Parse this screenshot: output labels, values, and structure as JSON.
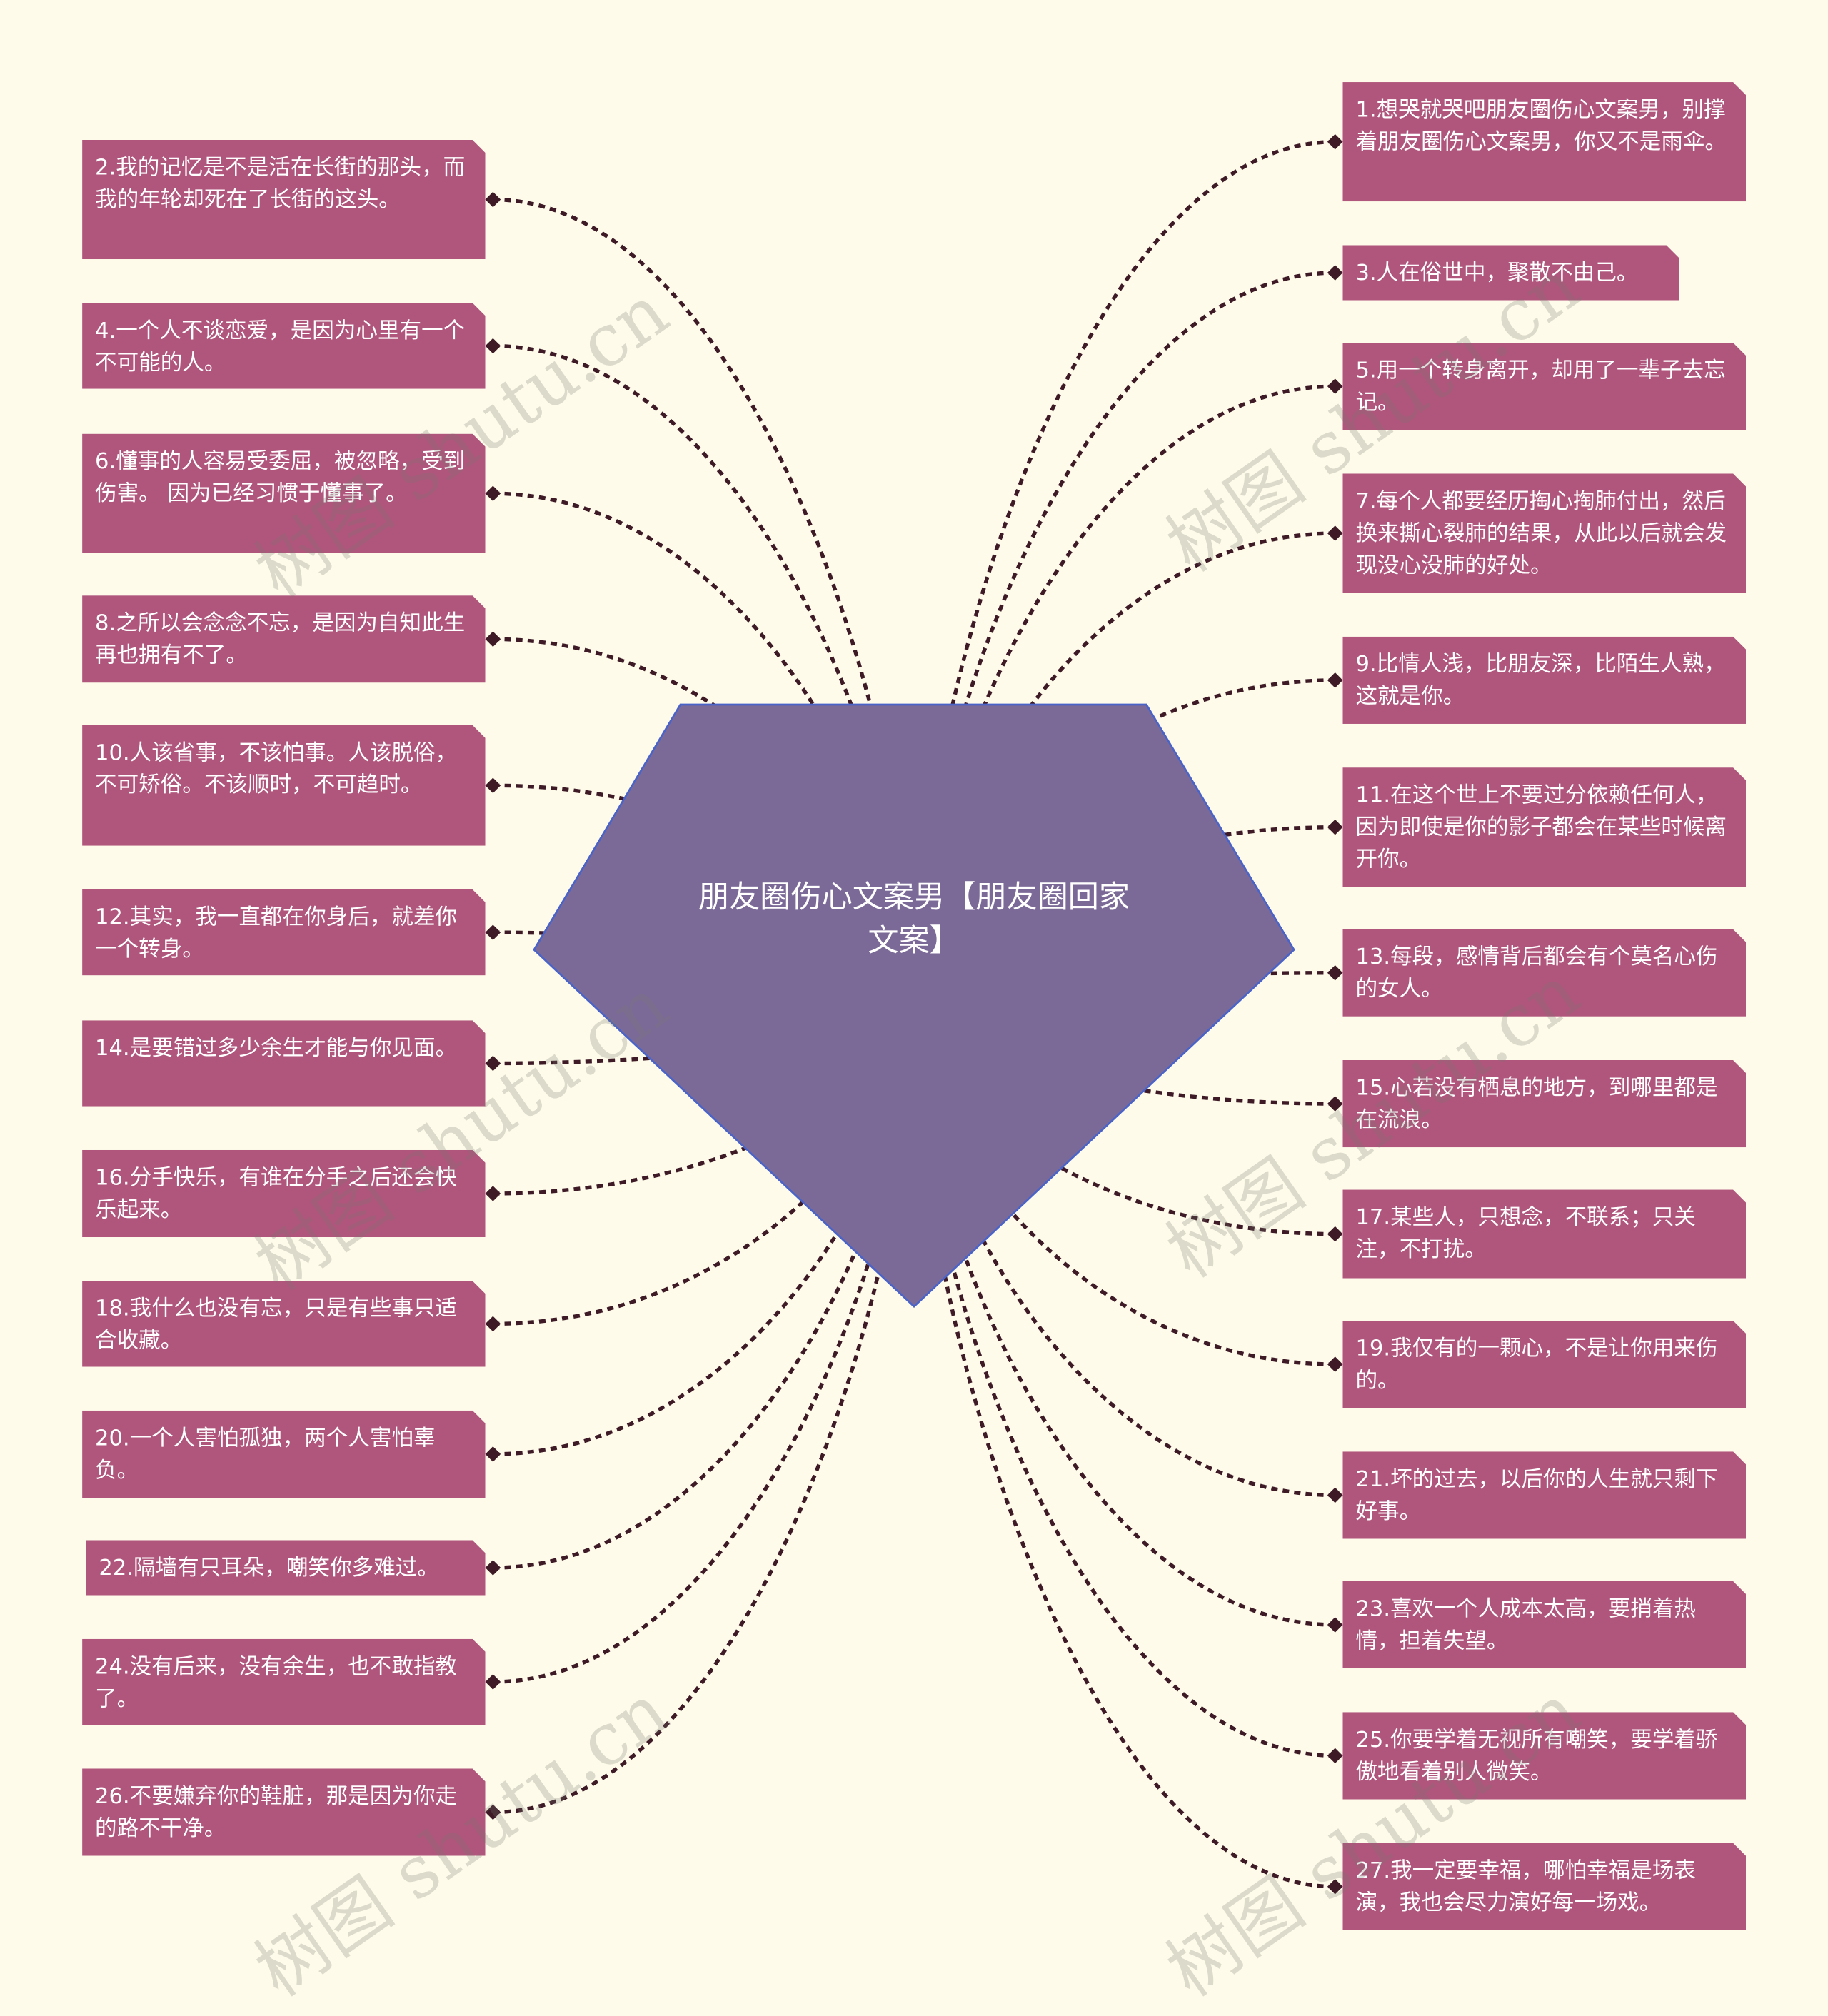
{
  "center": {
    "title": "朋友圈伤心文案男【朋友圈回家文案】",
    "color": "#7B6A98"
  },
  "colors": {
    "background": "#FEFBEA",
    "node": "#B0567D",
    "connector": "#3D1A26"
  },
  "watermark": "树图 shutu.cn",
  "left_nodes": [
    {
      "text": "2.我的记忆是不是活在长街的那头，而我的年轮却死在了长街的这头。"
    },
    {
      "text": "4.一个人不谈恋爱，是因为心里有一个不可能的人。"
    },
    {
      "text": "6.懂事的人容易受委屈，被忽略，受到伤害。 因为已经习惯于懂事了。"
    },
    {
      "text": "8.之所以会念念不忘，是因为自知此生再也拥有不了。"
    },
    {
      "text": "10.人该省事，不该怕事。人该脱俗，不可矫俗。不该顺时，不可趋时。"
    },
    {
      "text": "12.其实，我一直都在你身后，就差你一个转身。"
    },
    {
      "text": "14.是要错过多少余生才能与你见面。"
    },
    {
      "text": "16.分手快乐，有谁在分手之后还会快乐起来。"
    },
    {
      "text": "18.我什么也没有忘，只是有些事只适合收藏。"
    },
    {
      "text": "20.一个人害怕孤独，两个人害怕辜负。"
    },
    {
      "text": "22.隔墙有只耳朵，嘲笑你多难过。"
    },
    {
      "text": "24.没有后来，没有余生，也不敢指教了。"
    },
    {
      "text": "26.不要嫌弃你的鞋脏，那是因为你走的路不干净。"
    }
  ],
  "right_nodes": [
    {
      "text": "1.想哭就哭吧朋友圈伤心文案男，别撑着朋友圈伤心文案男，你又不是雨伞。"
    },
    {
      "text": "3.人在俗世中，聚散不由己。"
    },
    {
      "text": "5.用一个转身离开，却用了一辈子去忘记。"
    },
    {
      "text": "7.每个人都要经历掏心掏肺付出，然后换来撕心裂肺的结果，从此以后就会发现没心没肺的好处。"
    },
    {
      "text": "9.比情人浅，比朋友深，比陌生人熟，这就是你。"
    },
    {
      "text": "11.在这个世上不要过分依赖任何人，因为即使是你的影子都会在某些时候离开你。"
    },
    {
      "text": "13.每段，感情背后都会有个莫名心伤的女人。"
    },
    {
      "text": "15.心若没有栖息的地方，到哪里都是在流浪。"
    },
    {
      "text": "17.某些人，只想念，不联系；只关注，不打扰。"
    },
    {
      "text": "19.我仅有的一颗心，不是让你用来伤的。"
    },
    {
      "text": "21.坏的过去，以后你的人生就只剩下好事。"
    },
    {
      "text": "23.喜欢一个人成本太高，要捎着热情，担着失望。"
    },
    {
      "text": "25.你要学着无视所有嘲笑，要学着骄傲地看着别人微笑。"
    },
    {
      "text": "27.我一定要幸福，哪怕幸福是场表演，我也会尽力演好每一场戏。"
    }
  ]
}
